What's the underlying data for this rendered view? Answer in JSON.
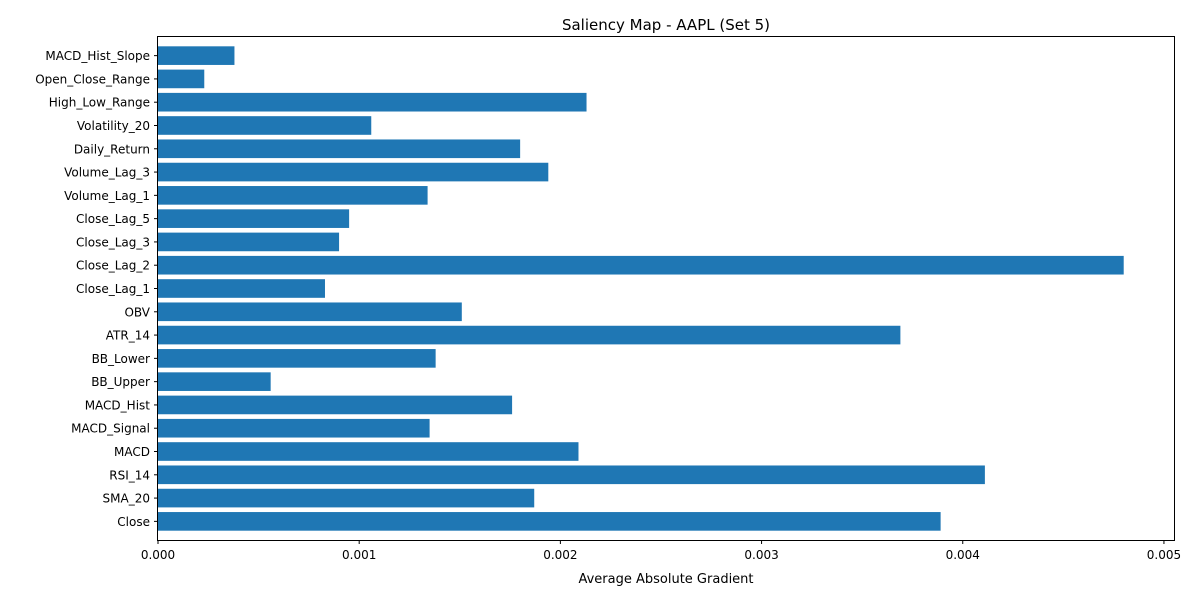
{
  "chart_data": {
    "type": "bar",
    "orientation": "horizontal",
    "title": "Saliency Map - AAPL (Set 5)",
    "xlabel": "Average Absolute Gradient",
    "ylabel": "",
    "xlim": [
      0,
      0.00505
    ],
    "xticks": [
      0,
      0.001,
      0.002,
      0.003,
      0.004,
      0.005
    ],
    "xtick_labels": [
      "0.000",
      "0.001",
      "0.002",
      "0.003",
      "0.004",
      "0.005"
    ],
    "bar_color": "#1f77b4",
    "grid": false,
    "categories": [
      "Close",
      "SMA_20",
      "RSI_14",
      "MACD",
      "MACD_Signal",
      "MACD_Hist",
      "BB_Upper",
      "BB_Lower",
      "ATR_14",
      "OBV",
      "Close_Lag_1",
      "Close_Lag_2",
      "Close_Lag_3",
      "Close_Lag_5",
      "Volume_Lag_1",
      "Volume_Lag_3",
      "Daily_Return",
      "Volatility_20",
      "High_Low_Range",
      "Open_Close_Range",
      "MACD_Hist_Slope"
    ],
    "values": [
      0.00389,
      0.00187,
      0.00411,
      0.00209,
      0.00135,
      0.00176,
      0.00056,
      0.00138,
      0.00369,
      0.00151,
      0.00083,
      0.0048,
      0.0009,
      0.00095,
      0.00134,
      0.00194,
      0.0018,
      0.00106,
      0.00213,
      0.00023,
      0.00038
    ]
  }
}
